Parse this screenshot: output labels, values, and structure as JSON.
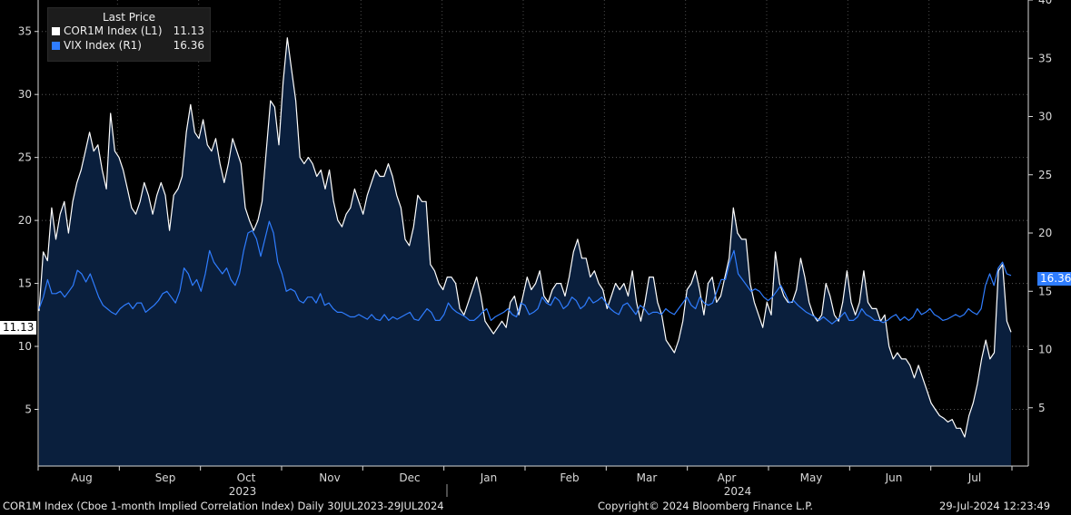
{
  "legend": {
    "title": "Last Price",
    "items": [
      {
        "name": "COR1M Index  (L1)",
        "value": "11.13",
        "color": "#ffffff"
      },
      {
        "name": "VIX Index  (R1)",
        "value": "16.36",
        "color": "#2f7dff"
      }
    ]
  },
  "last_labels": {
    "left": "11.13",
    "right": "16.36"
  },
  "footer": {
    "left": "COR1M Index (Cboe 1-month Implied Correlation Index)  Daily 30JUL2023-29JUL2024",
    "center": "Copyright© 2024 Bloomberg Finance L.P.",
    "right": "29-Jul-2024 12:23:49"
  },
  "chart_data": {
    "type": "line",
    "x_month_labels": [
      "Aug",
      "Sep",
      "Oct",
      "Nov",
      "Dec",
      "Jan",
      "Feb",
      "Mar",
      "Apr",
      "May",
      "Jun",
      "Jul"
    ],
    "x_year_labels": [
      "2023",
      "2024"
    ],
    "y_left": {
      "ticks": [
        5,
        10,
        15,
        20,
        25,
        30,
        35
      ],
      "range": [
        0.5,
        37.5
      ]
    },
    "y_right": {
      "ticks": [
        5,
        10,
        15,
        20,
        25,
        30,
        35,
        40
      ],
      "range": [
        0,
        40
      ]
    },
    "series": [
      {
        "name": "COR1M Index  (L1)",
        "axis": "left",
        "color": "#ffffff",
        "fill": "#0a1f3d",
        "values": [
          12.8,
          17.5,
          16.8,
          21,
          18.5,
          20.5,
          21.5,
          19,
          21.5,
          23,
          24,
          25.5,
          27,
          25.5,
          26,
          24,
          22.5,
          28.5,
          25.5,
          25,
          24,
          22.5,
          21,
          20.5,
          21.5,
          23,
          22,
          20.5,
          22,
          23,
          22,
          19.2,
          22,
          22.5,
          23.5,
          27,
          29.2,
          27,
          26.5,
          28,
          26,
          25.5,
          26.5,
          24.5,
          23,
          24.5,
          26.5,
          25.5,
          24.5,
          21,
          20,
          19.2,
          20,
          21.5,
          25.5,
          29.5,
          29,
          26,
          31,
          34.5,
          32,
          29.5,
          25,
          24.5,
          25,
          24.5,
          23.5,
          24,
          22.5,
          24,
          21.5,
          20,
          19.5,
          20.5,
          21,
          22.5,
          21.5,
          20.5,
          22,
          23,
          24,
          23.5,
          23.5,
          24.5,
          23.5,
          22,
          21,
          18.5,
          18,
          19.5,
          22,
          21.5,
          21.5,
          16.5,
          16,
          15,
          14.5,
          15.5,
          15.5,
          15,
          13,
          12.5,
          13.5,
          14.5,
          15.5,
          14,
          12,
          11.5,
          11,
          11.5,
          12,
          11.5,
          13.5,
          14,
          12.5,
          14,
          15.5,
          14.5,
          15,
          16,
          14,
          13.5,
          14.5,
          15,
          15,
          14,
          15.5,
          17.5,
          18.5,
          17,
          17,
          15.5,
          16,
          15,
          14.5,
          13,
          14,
          15,
          14.5,
          15,
          14,
          16,
          13.5,
          12,
          13.5,
          15.5,
          15.5,
          13.5,
          12.5,
          10.5,
          10,
          9.5,
          10.5,
          12,
          14.5,
          15,
          16,
          14.5,
          12.5,
          15,
          15.5,
          13.5,
          14,
          15.5,
          17,
          21,
          19,
          18.5,
          18.5,
          15,
          13.5,
          12.5,
          11.5,
          13.5,
          12.5,
          17.5,
          15,
          14,
          13.5,
          13.5,
          14.5,
          17,
          15.5,
          13.5,
          12.5,
          12,
          12.5,
          15,
          14,
          12.5,
          12,
          13.5,
          16,
          13.5,
          12.5,
          13.5,
          16,
          13.5,
          13,
          13,
          12,
          12.5,
          10,
          9,
          9.5,
          9,
          9,
          8.5,
          7.5,
          8.5,
          7.5,
          6.5,
          5.5,
          5,
          4.5,
          4.3,
          4,
          4.2,
          3.5,
          3.5,
          2.8,
          4.5,
          5.5,
          7,
          9,
          10.5,
          9,
          9.5,
          16,
          16.5,
          12,
          11.13
        ]
      },
      {
        "name": "VIX Index  (R1)",
        "axis": "right",
        "color": "#2f7dff",
        "values": [
          13.5,
          14.5,
          16,
          14.8,
          14.8,
          15,
          14.5,
          15,
          15.5,
          16.8,
          16.5,
          15.8,
          16.5,
          15.5,
          14.5,
          13.8,
          13.5,
          13.2,
          13,
          13.5,
          13.8,
          14,
          13.5,
          14,
          14,
          13.2,
          13.5,
          13.8,
          14.2,
          14.8,
          15,
          14.5,
          14,
          15,
          17,
          16.5,
          15.5,
          16,
          15,
          16.5,
          18.5,
          17.5,
          17,
          16.5,
          17,
          16,
          15.5,
          16.5,
          18.5,
          20,
          20.2,
          19.5,
          18,
          19.5,
          21,
          20,
          17.5,
          16.5,
          15,
          15.2,
          15,
          14.2,
          14,
          14.5,
          14.5,
          14,
          14.8,
          13.8,
          14,
          13.5,
          13.2,
          13.2,
          13,
          12.8,
          12.8,
          13,
          12.8,
          12.6,
          13,
          12.6,
          12.5,
          13,
          12.5,
          12.8,
          12.6,
          12.8,
          13,
          13.2,
          12.6,
          12.5,
          13,
          13.5,
          13.2,
          12.5,
          12.5,
          13,
          14,
          13.5,
          13.2,
          13,
          12.8,
          12.5,
          12.5,
          12.8,
          13.2,
          13.5,
          12.5,
          12.8,
          13,
          13.2,
          13.5,
          13,
          12.8,
          14,
          13.8,
          13,
          13.2,
          13.5,
          14.5,
          14,
          13.8,
          14.5,
          14.2,
          13.5,
          13.8,
          14.5,
          14.2,
          13.5,
          13.8,
          14.5,
          14,
          14.2,
          14.5,
          14,
          13.5,
          13.2,
          13,
          13.8,
          14,
          13.5,
          13,
          13.8,
          13.5,
          13,
          13.2,
          13.2,
          13,
          13.5,
          13.2,
          13,
          13.5,
          14,
          14.5,
          13.8,
          13.5,
          14.5,
          14,
          13.8,
          14,
          15,
          16,
          16,
          17.5,
          18.5,
          16.5,
          16,
          15.5,
          15,
          15.2,
          15,
          14.5,
          14.2,
          14.5,
          15,
          15.5,
          14.8,
          14,
          14.2,
          13.8,
          13.5,
          13.2,
          13,
          12.8,
          12.5,
          12.8,
          12.5,
          12.2,
          12.5,
          12.8,
          13.2,
          12.5,
          12.5,
          12.8,
          13.5,
          13,
          12.8,
          12.5,
          12.5,
          12.3,
          12.5,
          12.8,
          13,
          12.5,
          12.8,
          12.5,
          12.8,
          13.5,
          13,
          13.2,
          13.5,
          13,
          12.8,
          12.5,
          12.6,
          12.8,
          13,
          12.8,
          13,
          13.5,
          13.2,
          13,
          13.5,
          15.5,
          16.5,
          15.5,
          17,
          17.5,
          16.5,
          16.36
        ]
      }
    ]
  }
}
